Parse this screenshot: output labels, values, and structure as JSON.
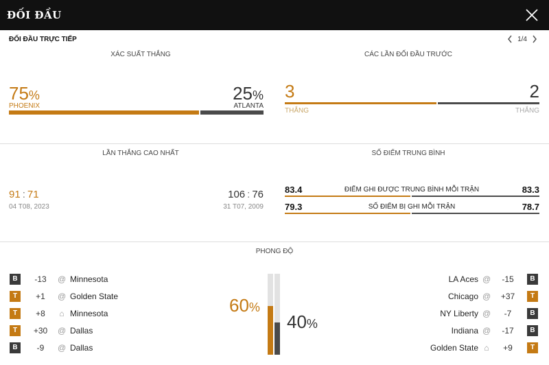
{
  "header": {
    "title": "ĐỐI ĐẦU",
    "close_icon": "close-icon"
  },
  "subheader": {
    "title": "ĐỐI ĐẦU TRỰC TIẾP",
    "pager": "1/4"
  },
  "win_probability": {
    "label": "XÁC SUẤT THẮNG",
    "home": {
      "value": "75",
      "pct": "%",
      "team": "PHOENIX",
      "fraction": 0.75
    },
    "away": {
      "value": "25",
      "pct": "%",
      "team": "ATLANTA",
      "fraction": 0.25
    }
  },
  "previous_meetings": {
    "label": "CÁC LẦN ĐỐI ĐẦU TRƯỚC",
    "home": {
      "value": "3",
      "caption": "THẮNG"
    },
    "away": {
      "value": "2",
      "caption": "THẮNG"
    },
    "home_fraction": 0.6
  },
  "biggest_win": {
    "label": "LẦN THẮNG CAO NHẤT",
    "home": {
      "score_a": "91",
      "score_b": "71",
      "date": "04 T08, 2023"
    },
    "away": {
      "score_a": "106",
      "score_b": "76",
      "date": "31 T07, 2009"
    }
  },
  "average_points": {
    "label": "SỐ ĐIỂM TRUNG BÌNH",
    "rows": [
      {
        "home": "83.4",
        "label": "ĐIỂM GHI ĐƯỢC TRUNG BÌNH MỖI TRẬN",
        "away": "83.3"
      },
      {
        "home": "79.3",
        "label": "SỐ ĐIỂM BỊ GHI MỖI TRẬN",
        "away": "78.7"
      }
    ]
  },
  "form": {
    "label": "PHONG ĐỘ",
    "home_pct": "60",
    "away_pct": "40",
    "pct_sign": "%",
    "home_fraction": 0.6,
    "away_fraction": 0.4,
    "home_games": [
      {
        "result": "B",
        "diff": "-13",
        "venue": "away",
        "opponent": "Minnesota"
      },
      {
        "result": "T",
        "diff": "+1",
        "venue": "away",
        "opponent": "Golden State"
      },
      {
        "result": "T",
        "diff": "+8",
        "venue": "home",
        "opponent": "Minnesota"
      },
      {
        "result": "T",
        "diff": "+30",
        "venue": "away",
        "opponent": "Dallas"
      },
      {
        "result": "B",
        "diff": "-9",
        "venue": "away",
        "opponent": "Dallas"
      }
    ],
    "away_games": [
      {
        "result": "B",
        "diff": "-15",
        "venue": "away",
        "opponent": "LA Aces"
      },
      {
        "result": "T",
        "diff": "+37",
        "venue": "away",
        "opponent": "Chicago"
      },
      {
        "result": "B",
        "diff": "-7",
        "venue": "away",
        "opponent": "NY Liberty"
      },
      {
        "result": "B",
        "diff": "-17",
        "venue": "away",
        "opponent": "Indiana"
      },
      {
        "result": "T",
        "diff": "+9",
        "venue": "home",
        "opponent": "Golden State"
      }
    ],
    "venue_symbols": {
      "away": "@",
      "home": "⌂"
    }
  },
  "colors": {
    "accent": "#c47a14",
    "dark": "#4a4a4a",
    "header": "#111111"
  }
}
